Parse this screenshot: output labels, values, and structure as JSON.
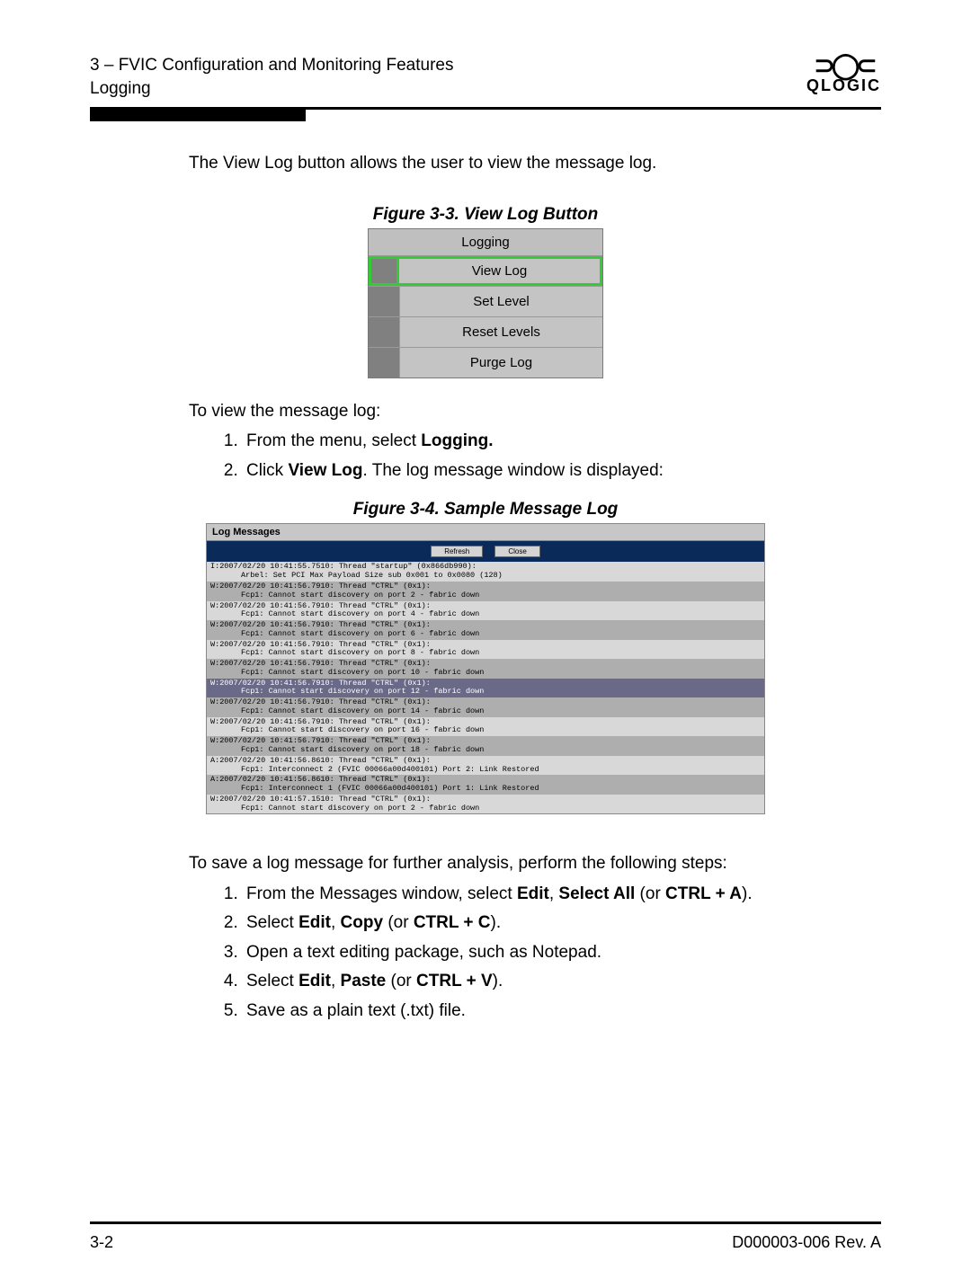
{
  "header": {
    "chapter_line": "3 – FVIC Configuration and Monitoring Features",
    "section_line": "Logging",
    "logo_brand": "QLOGIC"
  },
  "intro_para": "The View Log button allows the user to view the message log.",
  "fig3_caption": "Figure 3-3. View Log Button",
  "menu": {
    "title": "Logging",
    "items": [
      {
        "label": "View Log",
        "highlight": true
      },
      {
        "label": "Set Level",
        "highlight": false
      },
      {
        "label": "Reset Levels",
        "highlight": false
      },
      {
        "label": "Purge Log",
        "highlight": false
      }
    ]
  },
  "view_intro": "To view the message log:",
  "view_steps": {
    "s1_pre": "From the menu, select ",
    "s1_bold": "Logging.",
    "s2_pre": "Click ",
    "s2_bold": "View Log",
    "s2_post": ". The log message window is displayed:"
  },
  "fig4_caption": "Figure 3-4. Sample Message Log",
  "log_window": {
    "title": "Log Messages",
    "btn_refresh": "Refresh",
    "btn_close": "Close",
    "entries": [
      {
        "cls": "light",
        "line1": "I:2007/02/20 10:41:55.7510: Thread \"startup\" (0x866db990):",
        "line2": "Arbel: Set PCI Max Payload Size sub 0x001 to 0x0080 (128)"
      },
      {
        "cls": "dark",
        "line1": "W:2007/02/20 10:41:56.7910: Thread \"CTRL\" (0x1):",
        "line2": "Fcp1: Cannot start discovery on port 2 - fabric down"
      },
      {
        "cls": "light",
        "line1": "W:2007/02/20 10:41:56.7910: Thread \"CTRL\" (0x1):",
        "line2": "Fcp1: Cannot start discovery on port 4 - fabric down"
      },
      {
        "cls": "dark",
        "line1": "W:2007/02/20 10:41:56.7910: Thread \"CTRL\" (0x1):",
        "line2": "Fcp1: Cannot start discovery on port 6 - fabric down"
      },
      {
        "cls": "light",
        "line1": "W:2007/02/20 10:41:56.7910: Thread \"CTRL\" (0x1):",
        "line2": "Fcp1: Cannot start discovery on port 8 - fabric down"
      },
      {
        "cls": "dark",
        "line1": "W:2007/02/20 10:41:56.7910: Thread \"CTRL\" (0x1):",
        "line2": "Fcp1: Cannot start discovery on port 10 - fabric down"
      },
      {
        "cls": "sel",
        "line1": "W:2007/02/20 10:41:56.7910: Thread \"CTRL\" (0x1):",
        "line2": "Fcp1: Cannot start discovery on port 12 - fabric down"
      },
      {
        "cls": "dark",
        "line1": "W:2007/02/20 10:41:56.7910: Thread \"CTRL\" (0x1):",
        "line2": "Fcp1: Cannot start discovery on port 14 - fabric down"
      },
      {
        "cls": "light",
        "line1": "W:2007/02/20 10:41:56.7910: Thread \"CTRL\" (0x1):",
        "line2": "Fcp1: Cannot start discovery on port 16 - fabric down"
      },
      {
        "cls": "dark",
        "line1": "W:2007/02/20 10:41:56.7910: Thread \"CTRL\" (0x1):",
        "line2": "Fcp1: Cannot start discovery on port 18 - fabric down"
      },
      {
        "cls": "light",
        "line1": "A:2007/02/20 10:41:56.8610: Thread \"CTRL\" (0x1):",
        "line2": "Fcp1: Interconnect 2 (FVIC 00066a00d400101) Port 2: Link Restored"
      },
      {
        "cls": "dark",
        "line1": "A:2007/02/20 10:41:56.8610: Thread \"CTRL\" (0x1):",
        "line2": "Fcp1: Interconnect 1 (FVIC 00066a00d400101) Port 1: Link Restored"
      },
      {
        "cls": "light",
        "line1": "W:2007/02/20 10:41:57.1510: Thread \"CTRL\" (0x1):",
        "line2": "Fcp1: Cannot start discovery on port 2 - fabric down"
      }
    ]
  },
  "save_intro": "To save a log message for further analysis, perform the following steps:",
  "save_steps": {
    "s1_pre": "From the Messages window, select ",
    "s1_b1": "Edit",
    "s1_mid1": ", ",
    "s1_b2": "Select All",
    "s1_mid2": " (or ",
    "s1_b3": "CTRL + A",
    "s1_post": ").",
    "s2_pre": "Select ",
    "s2_b1": "Edit",
    "s2_mid1": ", ",
    "s2_b2": "Copy",
    "s2_mid2": " (or ",
    "s2_b3": "CTRL + C",
    "s2_post": ").",
    "s3": "Open a text editing package, such as Notepad.",
    "s4_pre": "Select ",
    "s4_b1": "Edit",
    "s4_mid1": ", ",
    "s4_b2": "Paste",
    "s4_mid2": " (or ",
    "s4_b3": "CTRL + V",
    "s4_post": ").",
    "s5": "Save as a plain text (.txt) file."
  },
  "footer": {
    "left": "3-2",
    "right": "D000003-006 Rev. A"
  }
}
